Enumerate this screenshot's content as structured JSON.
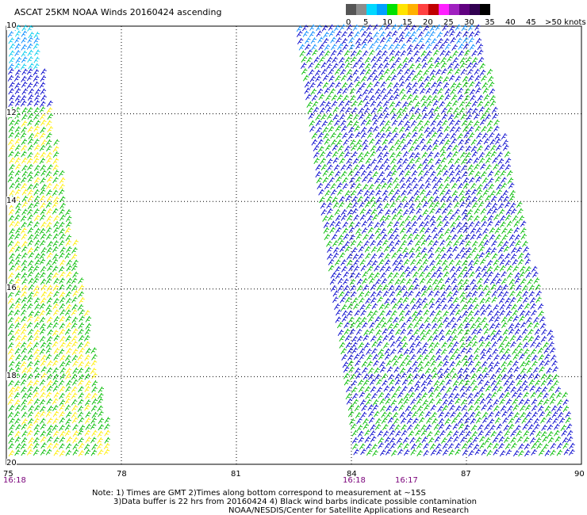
{
  "title": "ASCAT 25KM NOAA Winds 20160424 ascending",
  "legend": {
    "labels": [
      "0",
      "5",
      "10",
      "15",
      "20",
      "25",
      "30",
      "35",
      "40",
      "45",
      ">50 knots"
    ],
    "colors": [
      "#555555",
      "#8c8c8c",
      "#00d8ff",
      "#00a0ff",
      "#00e000",
      "#ffe400",
      "#ffb000",
      "#ff4040",
      "#c00000",
      "#ff20ff",
      "#a020c0",
      "#600080",
      "#300050",
      "#000000"
    ]
  },
  "map": {
    "x_ticks": [
      "75",
      "78",
      "81",
      "84",
      "87",
      "90"
    ],
    "y_ticks": [
      "10",
      "12",
      "14",
      "16",
      "18",
      "20"
    ],
    "times": [
      "16:18",
      "16:18",
      "16:17"
    ]
  },
  "notes": {
    "line1": "Note: 1) Times are GMT 2)Times along bottom correspond to measurement at ~15S",
    "line2": "3)Data buffer is 22 hrs from 20160424 4) Black wind barbs indicate possible contamination",
    "line3": "NOAA/NESDIS/Center for Satellite Applications and Research"
  },
  "palette": {
    "blue": "#0000cc",
    "green": "#00bb00",
    "yellow": "#ffee00",
    "cyan": "#00ccee",
    "lightblue": "#0088ff"
  }
}
